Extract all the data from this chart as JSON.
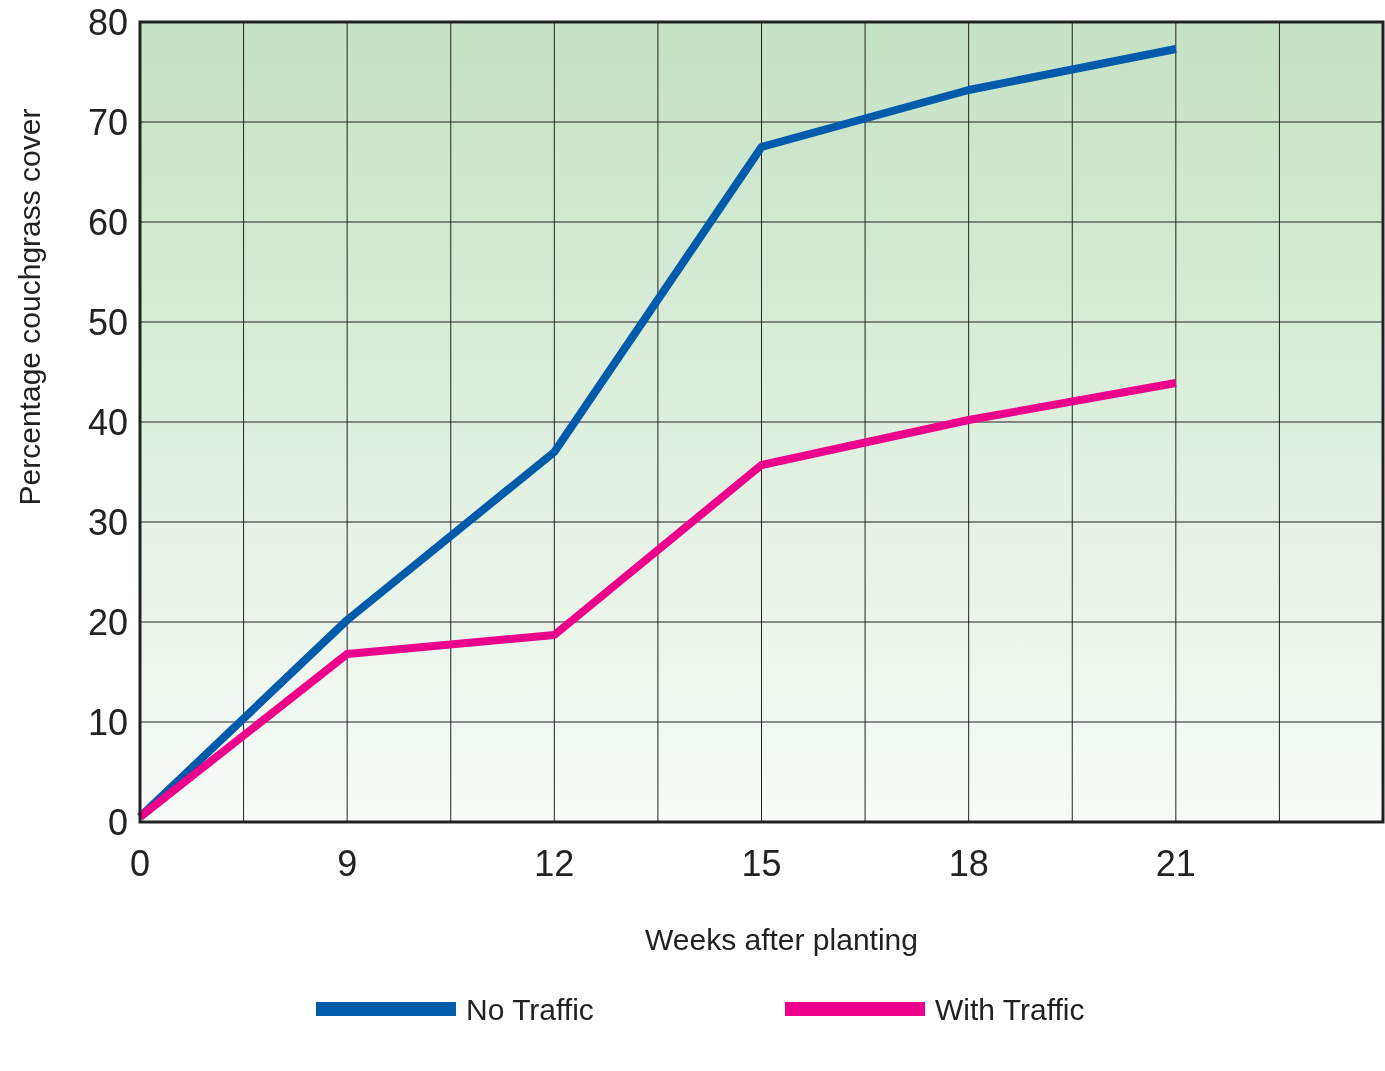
{
  "chart_data": {
    "type": "line",
    "xlabel": "Weeks after planting",
    "ylabel": "Percentage couchgrass cover",
    "categories": [
      "0",
      null,
      "9",
      null,
      "12",
      null,
      "15",
      null,
      "18",
      null,
      "21",
      null
    ],
    "series": [
      {
        "name": "No Traffic",
        "color": "#005bab",
        "values": [
          0.5,
          null,
          20.2,
          null,
          37,
          null,
          67.5,
          null,
          73.2,
          null,
          77.3,
          null
        ]
      },
      {
        "name": "With Traffic",
        "color": "#ec008c",
        "values": [
          0.5,
          null,
          16.8,
          null,
          18.7,
          null,
          35.7,
          null,
          40.2,
          null,
          43.9,
          null
        ]
      }
    ],
    "ylim": [
      0,
      80
    ],
    "yticks": [
      0,
      10,
      20,
      30,
      40,
      50,
      60,
      70,
      80
    ],
    "grid": true,
    "legend": "bottom",
    "marker": "none",
    "line_style": "solid"
  }
}
